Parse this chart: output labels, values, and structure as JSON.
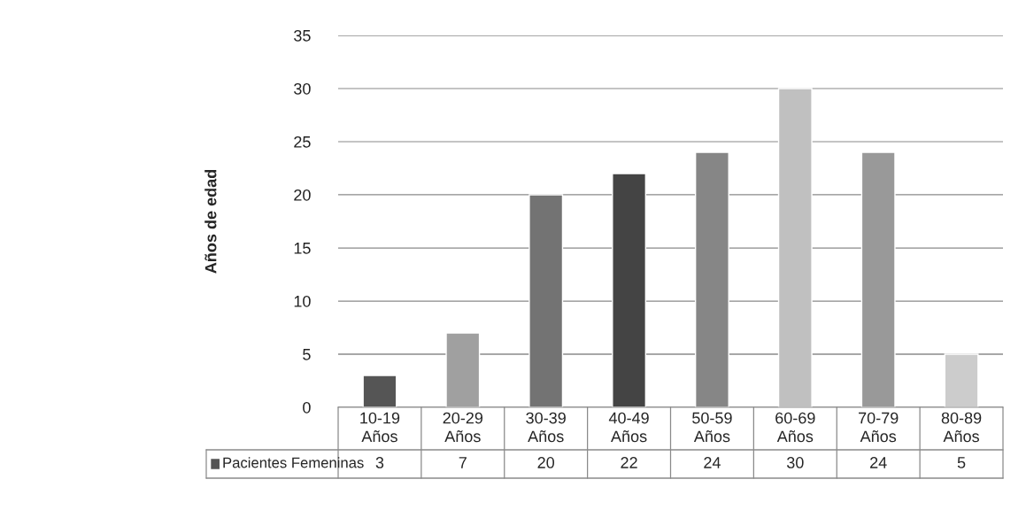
{
  "chart_data": {
    "type": "bar",
    "ylabel": "Años de edad",
    "categories": [
      "10-19 Años",
      "20-29 Años",
      "30-39 Años",
      "40-49 Años",
      "50-59 Años",
      "60-69 Años",
      "70-79 Años",
      "80-89 Años"
    ],
    "series": [
      {
        "name": "Pacientes Femeninas",
        "color": "#555555",
        "colors": [
          "#555555",
          "#a0a0a0",
          "#737373",
          "#444444",
          "#868686",
          "#c0c0c0",
          "#999999",
          "#cccccc"
        ],
        "values": [
          3,
          7,
          20,
          22,
          24,
          30,
          24,
          5
        ]
      }
    ],
    "ylim": [
      0,
      35
    ],
    "yticks": [
      0,
      5,
      10,
      15,
      20,
      25,
      30,
      35
    ],
    "grid": "y",
    "data_labels": true,
    "legend": "bottom"
  }
}
